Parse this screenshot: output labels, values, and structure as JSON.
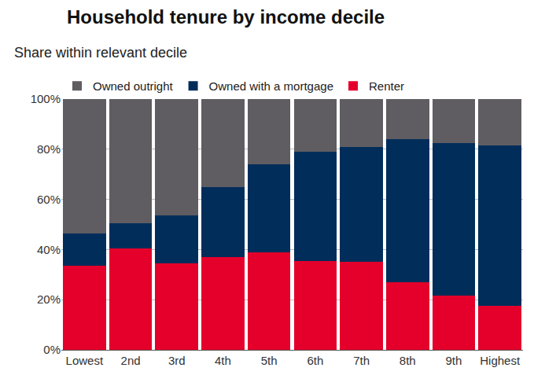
{
  "chart_data": {
    "type": "bar",
    "stacked": true,
    "title": "Household tenure by income decile",
    "subtitle": "Share within relevant decile",
    "categories": [
      "Lowest",
      "2nd",
      "3rd",
      "4th",
      "5th",
      "6th",
      "7th",
      "8th",
      "9th",
      "Highest"
    ],
    "series": [
      {
        "name": "Owned outright",
        "color": "#5f5d62",
        "values": [
          53.5,
          49.5,
          46.5,
          35,
          26,
          21,
          19,
          16,
          17.5,
          18.5
        ]
      },
      {
        "name": "Owned with a mortgage",
        "color": "#002d5a",
        "values": [
          13,
          10,
          19,
          28,
          35,
          43.5,
          46,
          57,
          61,
          64
        ]
      },
      {
        "name": "Renter",
        "color": "#e4002b",
        "values": [
          33.5,
          40.5,
          34.5,
          37,
          39,
          35.5,
          35,
          27,
          21.5,
          17.5
        ]
      }
    ],
    "ylim": [
      0,
      100
    ],
    "yticks": [
      {
        "value": 0,
        "label": "0%"
      },
      {
        "value": 20,
        "label": "20%"
      },
      {
        "value": 40,
        "label": "40%"
      },
      {
        "value": 60,
        "label": "60%"
      },
      {
        "value": 80,
        "label": "80%"
      },
      {
        "value": 100,
        "label": "100%"
      }
    ],
    "grid": true,
    "legend": "top-left"
  }
}
